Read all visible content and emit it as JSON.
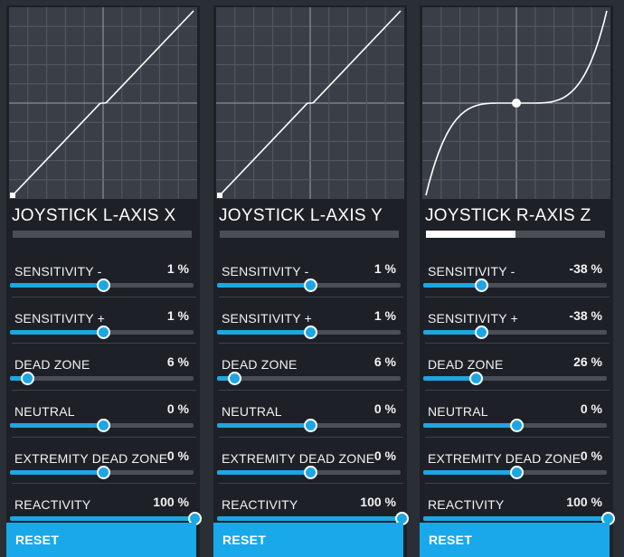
{
  "theme": {
    "accent": "#1ea6e3",
    "background": "#2a2f36",
    "panel": "#1d2127"
  },
  "panels": [
    {
      "title": "JOYSTICK L-AXIS X",
      "axis_position": 0,
      "curve": {
        "sensitivity_minus": 1,
        "sensitivity_plus": 1,
        "dead_zone": 6,
        "extremity_dead_zone": 0
      },
      "params": [
        {
          "label": "SENSITIVITY -",
          "value": "1 %",
          "level": 0.5
        },
        {
          "label": "SENSITIVITY +",
          "value": "1 %",
          "level": 0.5
        },
        {
          "label": "DEAD ZONE",
          "value": "6 %",
          "level": 0.09
        },
        {
          "label": "NEUTRAL",
          "value": "0 %",
          "level": 0.5
        },
        {
          "label": "EXTREMITY DEAD ZONE",
          "value": "0 %",
          "level": 0.5
        },
        {
          "label": "REACTIVITY",
          "value": "100 %",
          "level": 1.0
        }
      ],
      "reset_label": "RESET"
    },
    {
      "title": "JOYSTICK L-AXIS Y",
      "axis_position": 0,
      "curve": {
        "sensitivity_minus": 1,
        "sensitivity_plus": 1,
        "dead_zone": 6,
        "extremity_dead_zone": 0
      },
      "params": [
        {
          "label": "SENSITIVITY -",
          "value": "1 %",
          "level": 0.5
        },
        {
          "label": "SENSITIVITY +",
          "value": "1 %",
          "level": 0.5
        },
        {
          "label": "DEAD ZONE",
          "value": "6 %",
          "level": 0.09
        },
        {
          "label": "NEUTRAL",
          "value": "0 %",
          "level": 0.5
        },
        {
          "label": "EXTREMITY DEAD ZONE",
          "value": "0 %",
          "level": 0.5
        },
        {
          "label": "REACTIVITY",
          "value": "100 %",
          "level": 1.0
        }
      ],
      "reset_label": "RESET"
    },
    {
      "title": "JOYSTICK R-AXIS Z",
      "axis_position": 0.5,
      "curve": {
        "sensitivity_minus": -38,
        "sensitivity_plus": -38,
        "dead_zone": 26,
        "extremity_dead_zone": 0
      },
      "params": [
        {
          "label": "SENSITIVITY -",
          "value": "-38 %",
          "level": 0.31
        },
        {
          "label": "SENSITIVITY +",
          "value": "-38 %",
          "level": 0.31
        },
        {
          "label": "DEAD ZONE",
          "value": "26 %",
          "level": 0.28
        },
        {
          "label": "NEUTRAL",
          "value": "0 %",
          "level": 0.5
        },
        {
          "label": "EXTREMITY DEAD ZONE",
          "value": "0 %",
          "level": 0.5
        },
        {
          "label": "REACTIVITY",
          "value": "100 %",
          "level": 1.0
        }
      ],
      "reset_label": "RESET"
    }
  ]
}
